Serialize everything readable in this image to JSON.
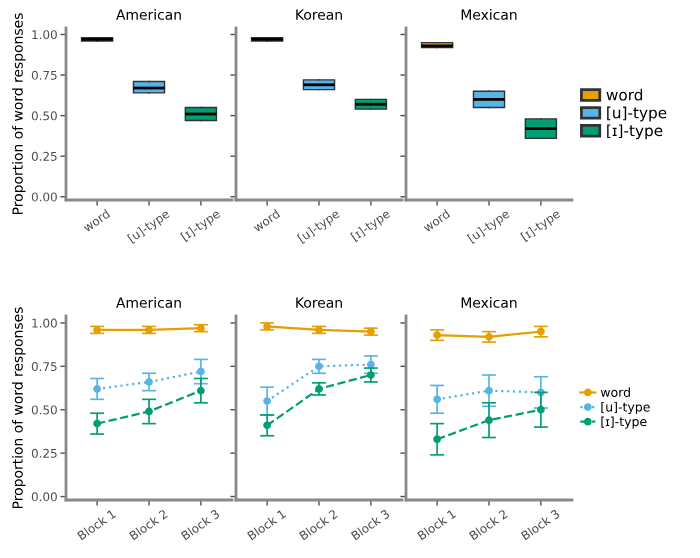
{
  "chart_data": [
    {
      "type": "box",
      "title": "American",
      "ylabel": "Proportion of word responses",
      "categories": [
        "word",
        "[u]-type",
        "[ɪ]-type"
      ],
      "ylim": [
        -0.02,
        1.04
      ],
      "yticks": [
        {
          "value": 0,
          "label": "0.00"
        },
        {
          "value": 0.25,
          "label": "0.25"
        },
        {
          "value": 0.5,
          "label": "0.50"
        },
        {
          "value": 0.75,
          "label": "0.75"
        },
        {
          "value": 1,
          "label": "1.00"
        }
      ],
      "grid": false,
      "series": [
        {
          "color": "#e69f00",
          "boxes": [
            {
              "low": 0.96,
              "q1": 0.96,
              "median": 0.97,
              "q3": 0.98,
              "high": 0.98
            },
            null,
            null
          ]
        },
        {
          "color": "#56b4e9",
          "boxes": [
            null,
            {
              "low": 0.64,
              "q1": 0.64,
              "median": 0.67,
              "q3": 0.71,
              "high": 0.71
            },
            null
          ]
        },
        {
          "color": "#009e73",
          "boxes": [
            null,
            null,
            {
              "low": 0.47,
              "q1": 0.47,
              "median": 0.51,
              "q3": 0.55,
              "high": 0.55
            }
          ]
        }
      ]
    },
    {
      "type": "box",
      "title": "Korean",
      "categories": [
        "word",
        "[u]-type",
        "[ɪ]-type"
      ],
      "ylim": [
        -0.02,
        1.04
      ],
      "yticks": [
        {
          "value": 0,
          "label": null
        },
        {
          "value": 0.25,
          "label": null
        },
        {
          "value": 0.5,
          "label": null
        },
        {
          "value": 0.75,
          "label": null
        },
        {
          "value": 1,
          "label": null
        }
      ],
      "tick_labels": "x",
      "grid": false,
      "series": [
        {
          "color": "#e69f00",
          "boxes": [
            {
              "low": 0.96,
              "q1": 0.96,
              "median": 0.97,
              "q3": 0.98,
              "high": 0.98
            },
            null,
            null
          ]
        },
        {
          "color": "#56b4e9",
          "boxes": [
            null,
            {
              "low": 0.66,
              "q1": 0.66,
              "median": 0.69,
              "q3": 0.72,
              "high": 0.72
            },
            null
          ]
        },
        {
          "color": "#009e73",
          "boxes": [
            null,
            null,
            {
              "low": 0.54,
              "q1": 0.54,
              "median": 0.57,
              "q3": 0.6,
              "high": 0.6
            }
          ]
        }
      ]
    },
    {
      "type": "box",
      "title": "Mexican",
      "categories": [
        "word",
        "[u]-type",
        "[ɪ]-type"
      ],
      "ylim": [
        -0.02,
        1.04
      ],
      "yticks": [
        {
          "value": 0,
          "label": null
        },
        {
          "value": 0.25,
          "label": null
        },
        {
          "value": 0.5,
          "label": null
        },
        {
          "value": 0.75,
          "label": null
        },
        {
          "value": 1,
          "label": null
        }
      ],
      "tick_labels": "x",
      "grid": false,
      "legend": "right",
      "series": [
        {
          "name": "word",
          "color": "#e69f00",
          "boxes": [
            {
              "low": 0.92,
              "q1": 0.92,
              "median": 0.93,
              "q3": 0.95,
              "high": 0.95
            },
            null,
            null
          ]
        },
        {
          "name": "[u]-type",
          "color": "#56b4e9",
          "boxes": [
            null,
            {
              "low": 0.55,
              "q1": 0.55,
              "median": 0.6,
              "q3": 0.65,
              "high": 0.65
            },
            null
          ]
        },
        {
          "name": "[ɪ]-type",
          "color": "#009e73",
          "boxes": [
            null,
            null,
            {
              "low": 0.36,
              "q1": 0.36,
              "median": 0.42,
              "q3": 0.48,
              "high": 0.48
            }
          ]
        }
      ]
    },
    {
      "type": "line",
      "title": "American",
      "ylabel": "Proportion of word responses",
      "categories": [
        "Block 1",
        "Block 2",
        "Block 3"
      ],
      "ylim": [
        -0.02,
        1.04
      ],
      "yticks": [
        {
          "value": 0,
          "label": "0.00"
        },
        {
          "value": 0.25,
          "label": "0.25"
        },
        {
          "value": 0.5,
          "label": "0.50"
        },
        {
          "value": 0.75,
          "label": "0.75"
        },
        {
          "value": 1,
          "label": "1.00"
        }
      ],
      "grid": false,
      "marker": "circle",
      "series": [
        {
          "color": "#e69f00",
          "line_style": "solid",
          "values": [
            0.96,
            0.96,
            0.97
          ],
          "errors": [
            0.02,
            0.02,
            0.02
          ]
        },
        {
          "color": "#56b4e9",
          "line_style": "dotted",
          "values": [
            0.62,
            0.66,
            0.72
          ],
          "errors": [
            0.06,
            0.05,
            0.07
          ]
        },
        {
          "color": "#009e73",
          "line_style": "dashed",
          "values": [
            0.42,
            0.49,
            0.61
          ],
          "errors": [
            0.06,
            0.07,
            0.07
          ]
        }
      ]
    },
    {
      "type": "line",
      "title": "Korean",
      "categories": [
        "Block 1",
        "Block 2",
        "Block 3"
      ],
      "ylim": [
        -0.02,
        1.04
      ],
      "yticks": [
        {
          "value": 0,
          "label": null
        },
        {
          "value": 0.25,
          "label": null
        },
        {
          "value": 0.5,
          "label": null
        },
        {
          "value": 0.75,
          "label": null
        },
        {
          "value": 1,
          "label": null
        }
      ],
      "tick_labels": "x",
      "grid": false,
      "marker": "circle",
      "series": [
        {
          "color": "#e69f00",
          "line_style": "solid",
          "values": [
            0.98,
            0.96,
            0.95
          ],
          "errors": [
            0.02,
            0.02,
            0.02
          ]
        },
        {
          "color": "#56b4e9",
          "line_style": "dotted",
          "values": [
            0.55,
            0.75,
            0.76
          ],
          "errors": [
            0.08,
            0.04,
            0.05
          ]
        },
        {
          "color": "#009e73",
          "line_style": "dashed",
          "values": [
            0.41,
            0.62,
            0.7
          ],
          "errors": [
            0.06,
            0.035,
            0.04
          ]
        }
      ]
    },
    {
      "type": "line",
      "title": "Mexican",
      "categories": [
        "Block 1",
        "Block 2",
        "Block 3"
      ],
      "ylim": [
        -0.02,
        1.04
      ],
      "yticks": [
        {
          "value": 0,
          "label": null
        },
        {
          "value": 0.25,
          "label": null
        },
        {
          "value": 0.5,
          "label": null
        },
        {
          "value": 0.75,
          "label": null
        },
        {
          "value": 1,
          "label": null
        }
      ],
      "tick_labels": "x",
      "grid": false,
      "marker": "circle",
      "legend": "right",
      "series": [
        {
          "name": "word",
          "color": "#e69f00",
          "line_style": "solid",
          "values": [
            0.93,
            0.92,
            0.95
          ],
          "errors": [
            0.03,
            0.03,
            0.03
          ]
        },
        {
          "name": "[u]-type",
          "color": "#56b4e9",
          "line_style": "dotted",
          "values": [
            0.56,
            0.61,
            0.6
          ],
          "errors": [
            0.08,
            0.09,
            0.09
          ]
        },
        {
          "name": "[ɪ]-type",
          "color": "#009e73",
          "line_style": "dashed",
          "values": [
            0.33,
            0.44,
            0.5
          ],
          "errors": [
            0.09,
            0.1,
            0.1
          ]
        }
      ]
    }
  ]
}
